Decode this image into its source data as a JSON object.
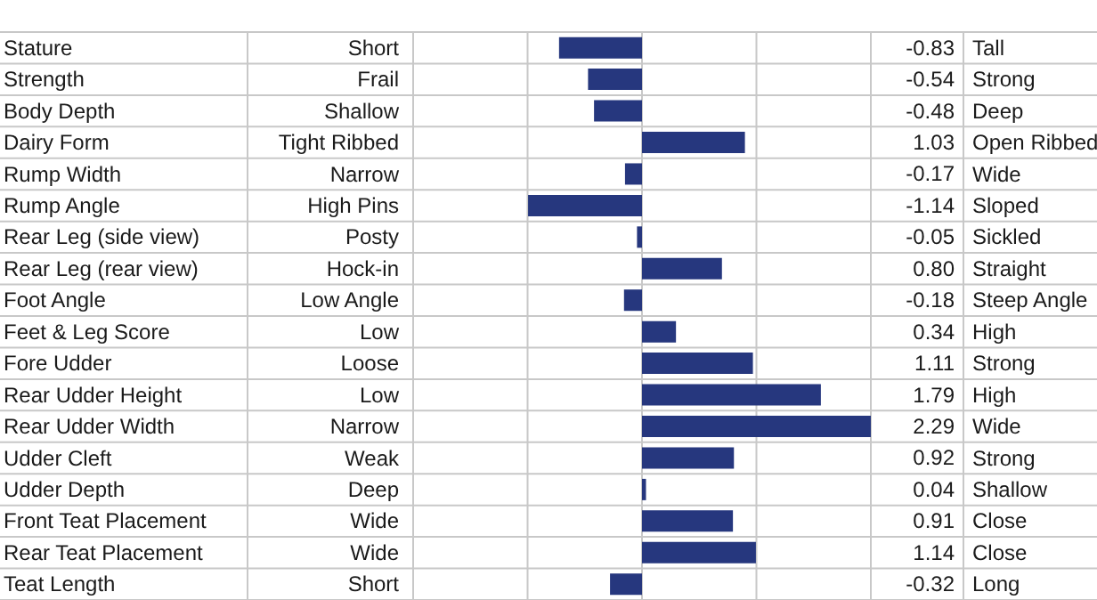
{
  "chart_data": {
    "type": "bar",
    "orientation": "horizontal",
    "categories": [
      "Stature",
      "Strength",
      "Body Depth",
      "Dairy Form",
      "Rump Width",
      "Rump Angle",
      "Rear Leg (side view)",
      "Rear Leg (rear view)",
      "Foot Angle",
      "Feet & Leg Score",
      "Fore Udder",
      "Rear Udder Height",
      "Rear Udder Width",
      "Udder Cleft",
      "Udder Depth",
      "Front Teat Placement",
      "Rear Teat Placement",
      "Teat Length"
    ],
    "y_categories": [
      "Short",
      "Frail",
      "Shallow",
      "Tight Ribbed",
      "Narrow",
      "High Pins",
      "Posty",
      "Hock-in",
      "Low Angle",
      "Low",
      "Loose",
      "Low",
      "Narrow",
      "Weak",
      "Deep",
      "Wide",
      "Wide",
      "Short"
    ],
    "y2_categories": [
      "Tall",
      "Strong",
      "Deep",
      "Open Ribbed",
      "Wide",
      "Sloped",
      "Sickled",
      "Straight",
      "Steep Angle",
      "High",
      "Strong",
      "High",
      "Wide",
      "Strong",
      "Shallow",
      "Close",
      "Close",
      "Long"
    ],
    "values": [
      -0.83,
      -0.54,
      -0.48,
      1.03,
      -0.17,
      -1.14,
      -0.05,
      0.8,
      -0.18,
      0.34,
      1.11,
      1.79,
      2.29,
      0.92,
      0.04,
      0.91,
      1.14,
      -0.32
    ],
    "value_labels": [
      "-0.83",
      "-0.54",
      "-0.48",
      "1.03",
      "-0.17",
      "-1.14",
      "-0.05",
      "0.80",
      "-0.18",
      "0.34",
      "1.11",
      "1.79",
      "2.29",
      "0.92",
      "0.04",
      "0.91",
      "1.14",
      "-0.32"
    ],
    "color": "#26377e",
    "grid": true
  }
}
